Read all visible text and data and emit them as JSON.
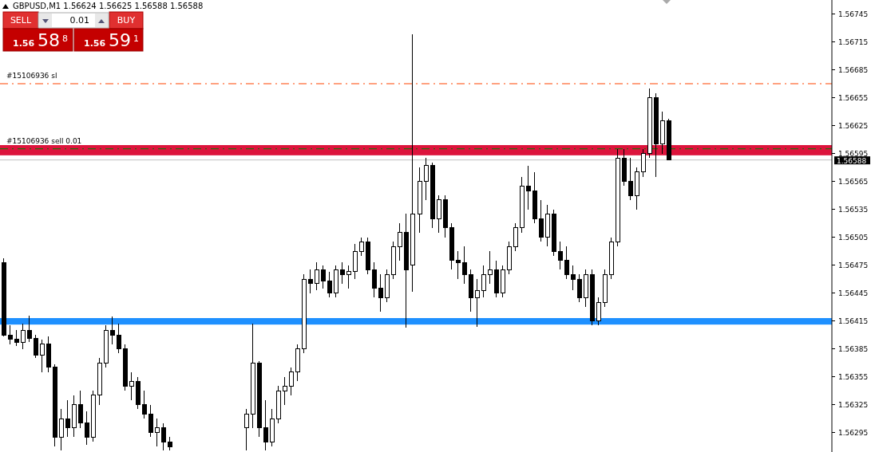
{
  "chart_data": {
    "type": "candlestick",
    "title": "GBPUSD,M1  1.56624 1.56625 1.56588 1.56588",
    "color": "#000000",
    "categories": [
      null,
      null,
      null,
      null,
      null,
      null,
      null,
      null,
      null,
      null,
      null,
      null,
      null,
      null,
      null,
      null,
      null,
      null,
      null,
      null,
      null,
      null,
      null,
      null,
      null,
      null,
      null,
      null,
      null,
      null,
      null,
      null,
      null,
      null,
      null,
      null,
      null,
      null,
      null,
      null,
      null,
      null,
      null,
      null,
      null,
      null,
      null,
      null,
      null,
      null,
      null,
      null,
      null,
      null,
      null,
      null,
      null,
      null,
      null,
      null,
      null,
      null,
      null,
      null,
      null,
      null,
      null,
      null,
      null,
      null,
      null,
      null,
      null,
      null,
      null,
      null,
      null,
      null,
      null,
      null,
      null,
      null,
      null,
      null,
      null,
      null,
      null,
      null,
      null,
      null,
      null,
      null,
      null,
      null,
      null,
      null,
      null,
      null,
      null,
      null,
      null,
      null,
      null,
      null,
      null,
      null,
      null,
      null,
      null,
      null,
      null,
      null,
      null,
      null,
      null,
      null,
      null,
      null,
      null,
      null,
      null,
      null,
      null,
      null,
      null,
      null,
      null,
      null,
      null,
      null
    ],
    "ohlc": [
      [
        1.56478,
        1.56482,
        1.56398,
        1.564
      ],
      [
        1.564,
        1.5641,
        1.5639,
        1.56395
      ],
      [
        1.56395,
        1.56405,
        1.56388,
        1.56392
      ],
      [
        1.56392,
        1.56412,
        1.56385,
        1.56405
      ],
      [
        1.56405,
        1.56421,
        1.56392,
        1.56396
      ],
      [
        1.56396,
        1.564,
        1.56375,
        1.56378
      ],
      [
        1.56378,
        1.56395,
        1.5636,
        1.5639
      ],
      [
        1.5639,
        1.56398,
        1.5636,
        1.56365
      ],
      [
        1.56365,
        1.56368,
        1.5628,
        1.5629
      ],
      [
        1.5629,
        1.5632,
        1.56276,
        1.5631
      ],
      [
        1.5631,
        1.5633,
        1.5629,
        1.563
      ],
      [
        1.563,
        1.56335,
        1.5629,
        1.56325
      ],
      [
        1.56325,
        1.5634,
        1.563,
        1.56305
      ],
      [
        1.56305,
        1.56318,
        1.56282,
        1.5629
      ],
      [
        1.5629,
        1.5634,
        1.56285,
        1.56335
      ],
      [
        1.56335,
        1.56375,
        1.56325,
        1.5637
      ],
      [
        1.5637,
        1.5641,
        1.56365,
        1.56405
      ],
      [
        1.56405,
        1.5642,
        1.5639,
        1.564
      ],
      [
        1.564,
        1.56412,
        1.5638,
        1.56385
      ],
      [
        1.56385,
        1.5639,
        1.5634,
        1.56345
      ],
      [
        1.56345,
        1.5636,
        1.5633,
        1.5635
      ],
      [
        1.5635,
        1.56355,
        1.5632,
        1.56325
      ],
      [
        1.56325,
        1.5634,
        1.5631,
        1.56315
      ],
      [
        1.56315,
        1.56325,
        1.5629,
        1.56295
      ],
      [
        1.56295,
        1.5631,
        1.5628,
        1.563
      ],
      [
        1.563,
        1.56305,
        1.56276,
        1.56285
      ],
      [
        1.56285,
        1.5629,
        1.56276,
        1.5628
      ],
      null,
      null,
      null,
      null,
      null,
      null,
      null,
      null,
      null,
      null,
      null,
      [
        1.563,
        1.5632,
        1.56276,
        1.56315
      ],
      [
        1.56315,
        1.56412,
        1.563,
        1.5637
      ],
      [
        1.5637,
        1.56372,
        1.5629,
        1.563
      ],
      [
        1.563,
        1.5633,
        1.56276,
        1.56285
      ],
      [
        1.56285,
        1.5632,
        1.5628,
        1.5631
      ],
      [
        1.5631,
        1.56345,
        1.56305,
        1.5634
      ],
      [
        1.5634,
        1.56355,
        1.56325,
        1.56345
      ],
      [
        1.56345,
        1.56365,
        1.56335,
        1.5636
      ],
      [
        1.5636,
        1.5639,
        1.5635,
        1.56385
      ],
      [
        1.56385,
        1.56465,
        1.5638,
        1.5646
      ],
      [
        1.5646,
        1.5647,
        1.56445,
        1.56455
      ],
      [
        1.56455,
        1.56478,
        1.56448,
        1.5647
      ],
      [
        1.5647,
        1.56475,
        1.5645,
        1.56458
      ],
      [
        1.56458,
        1.56468,
        1.5644,
        1.56445
      ],
      [
        1.56445,
        1.56475,
        1.5644,
        1.5647
      ],
      [
        1.5647,
        1.56478,
        1.56455,
        1.56465
      ],
      [
        1.56465,
        1.56475,
        1.5645,
        1.56468
      ],
      [
        1.56468,
        1.56498,
        1.5646,
        1.5649
      ],
      [
        1.5649,
        1.56505,
        1.56485,
        1.565
      ],
      [
        1.565,
        1.56505,
        1.56465,
        1.5647
      ],
      [
        1.5647,
        1.56478,
        1.5644,
        1.5645
      ],
      [
        1.5645,
        1.56465,
        1.56425,
        1.5644
      ],
      [
        1.5644,
        1.5647,
        1.56435,
        1.56465
      ],
      [
        1.56465,
        1.565,
        1.5646,
        1.56495
      ],
      [
        1.56495,
        1.5652,
        1.5648,
        1.5651
      ],
      [
        1.5651,
        1.5653,
        1.56408,
        1.5647
      ],
      [
        1.56475,
        1.56723,
        1.56446,
        1.5653
      ],
      [
        1.5653,
        1.5658,
        1.5651,
        1.56565
      ],
      [
        1.56565,
        1.5659,
        1.56545,
        1.56582
      ],
      [
        1.56582,
        1.56585,
        1.56515,
        1.56525
      ],
      [
        1.56525,
        1.5655,
        1.5651,
        1.56545
      ],
      [
        1.56545,
        1.5655,
        1.56505,
        1.56515
      ],
      [
        1.56515,
        1.5652,
        1.5647,
        1.5648
      ],
      [
        1.5648,
        1.5649,
        1.5646,
        1.56478
      ],
      [
        1.56478,
        1.56495,
        1.56455,
        1.56465
      ],
      [
        1.56465,
        1.5647,
        1.56425,
        1.5644
      ],
      [
        1.5644,
        1.5646,
        1.56409,
        1.56448
      ],
      [
        1.56448,
        1.56475,
        1.5644,
        1.56465
      ],
      [
        1.56465,
        1.5649,
        1.56455,
        1.5647
      ],
      [
        1.5647,
        1.5648,
        1.5644,
        1.56445
      ],
      [
        1.56445,
        1.56475,
        1.5644,
        1.5647
      ],
      [
        1.5647,
        1.565,
        1.56465,
        1.56495
      ],
      [
        1.56495,
        1.5652,
        1.5649,
        1.56515
      ],
      [
        1.56515,
        1.5657,
        1.5651,
        1.5656
      ],
      [
        1.5656,
        1.56582,
        1.56535,
        1.56555
      ],
      [
        1.56555,
        1.56575,
        1.5652,
        1.56525
      ],
      [
        1.56525,
        1.56545,
        1.565,
        1.56505
      ],
      [
        1.56505,
        1.5654,
        1.56495,
        1.5653
      ],
      [
        1.5653,
        1.56535,
        1.56485,
        1.5649
      ],
      [
        1.5649,
        1.565,
        1.5647,
        1.5648
      ],
      [
        1.5648,
        1.56495,
        1.5646,
        1.56465
      ],
      [
        1.56465,
        1.56475,
        1.56448,
        1.5646
      ],
      [
        1.5646,
        1.56465,
        1.56435,
        1.5644
      ],
      [
        1.5644,
        1.5647,
        1.5643,
        1.56465
      ],
      [
        1.56465,
        1.5647,
        1.5641,
        1.56415
      ],
      [
        1.56415,
        1.5644,
        1.5641,
        1.56435
      ],
      [
        1.56435,
        1.5647,
        1.5643,
        1.56465
      ],
      [
        1.56465,
        1.56505,
        1.5646,
        1.565
      ],
      [
        1.565,
        1.566,
        1.56495,
        1.5659
      ],
      [
        1.5659,
        1.566,
        1.5656,
        1.56565
      ],
      [
        1.56565,
        1.5659,
        1.56545,
        1.5655
      ],
      [
        1.5655,
        1.5658,
        1.56535,
        1.56575
      ],
      [
        1.56575,
        1.566,
        1.5657,
        1.56595
      ],
      [
        1.56595,
        1.56665,
        1.5659,
        1.56655
      ],
      [
        1.56655,
        1.5666,
        1.5657,
        1.56605
      ],
      [
        1.56605,
        1.5664,
        1.56595,
        1.5663
      ],
      [
        1.5663,
        1.56632,
        1.56588,
        1.56588
      ],
      null,
      null,
      null,
      null,
      null,
      null,
      null,
      null,
      null,
      null,
      null,
      null,
      null,
      null,
      null,
      null,
      null,
      null,
      null,
      null,
      null,
      null,
      null,
      null,
      null
    ],
    "ylim": [
      1.56274,
      1.5676
    ],
    "yticks": [
      1.56295,
      1.56325,
      1.56355,
      1.56385,
      1.56415,
      1.56445,
      1.56475,
      1.56505,
      1.56535,
      1.56565,
      1.56595,
      1.56625,
      1.56655,
      1.56685,
      1.56715,
      1.56745
    ],
    "tick_labels": "y",
    "ref_lines": [
      {
        "axis": "y",
        "value": 1.5667,
        "label": "#15106936 sl",
        "color": "#ff4500",
        "line_style": "dashed"
      },
      {
        "axis": "y",
        "value": 1.566,
        "label": "#15106936 sell 0.01",
        "color": "#008000",
        "line_style": "dashed"
      },
      {
        "axis": "y",
        "value": 1.56588,
        "label": "1.56588",
        "color": "#c0c0c0",
        "line_style": "solid"
      }
    ],
    "bands": [
      {
        "axis": "y",
        "from": 1.56411,
        "to": 1.56418,
        "color": "#1e90ff"
      },
      {
        "axis": "y",
        "from": 1.56593,
        "to": 1.56604,
        "color": "#dc143c"
      }
    ],
    "annotations": [
      "SELL",
      "BUY",
      "0.01",
      "1.56 58$^{8}$",
      "1.56 59$^{1}$"
    ]
  }
}
